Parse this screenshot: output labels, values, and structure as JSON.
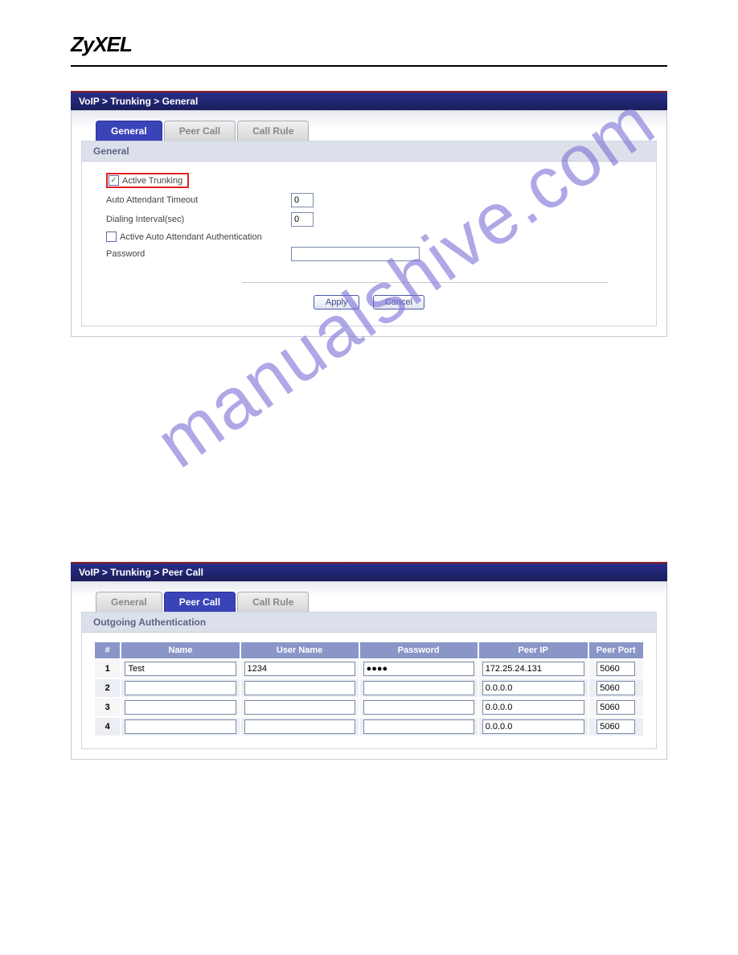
{
  "logo": "ZyXEL",
  "watermark": "manualshive.com",
  "section1": {
    "breadcrumb": "VoIP > Trunking > General",
    "tabs": [
      "General",
      "Peer Call",
      "Call Rule"
    ],
    "active_tab": 0,
    "panel_title": "General",
    "fields": {
      "active_trunking_label": "Active Trunking",
      "active_trunking_checked": true,
      "timeout_label": "Auto Attendant Timeout",
      "timeout_value": "0",
      "interval_label": "Dialing Interval(sec)",
      "interval_value": "0",
      "auth_label": "Active Auto Attendant Authentication",
      "auth_checked": false,
      "password_label": "Password",
      "password_value": ""
    },
    "buttons": {
      "apply": "Apply",
      "cancel": "Cancel"
    }
  },
  "section2": {
    "breadcrumb": "VoIP > Trunking > Peer Call",
    "tabs": [
      "General",
      "Peer Call",
      "Call Rule"
    ],
    "active_tab": 1,
    "panel_title": "Outgoing Authentication",
    "columns": [
      "#",
      "Name",
      "User Name",
      "Password",
      "Peer IP",
      "Peer Port"
    ],
    "rows": [
      {
        "num": "1",
        "name": "Test",
        "user": "1234",
        "pass": "●●●●",
        "ip": "172.25.24.131",
        "port": "5060"
      },
      {
        "num": "2",
        "name": "",
        "user": "",
        "pass": "",
        "ip": "0.0.0.0",
        "port": "5060"
      },
      {
        "num": "3",
        "name": "",
        "user": "",
        "pass": "",
        "ip": "0.0.0.0",
        "port": "5060"
      },
      {
        "num": "4",
        "name": "",
        "user": "",
        "pass": "",
        "ip": "0.0.0.0",
        "port": "5060"
      }
    ]
  },
  "colors": {
    "title_bar_bg": "#2a2e8a",
    "title_bar_border": "#8a2020",
    "tab_active_bg": "#3a43b8",
    "section_header_bg": "#dce0ea",
    "section_header_text": "#5a6488",
    "table_header_bg": "#8a96c8",
    "highlight_border": "#e02020",
    "watermark_color": "#7b6fd6"
  }
}
